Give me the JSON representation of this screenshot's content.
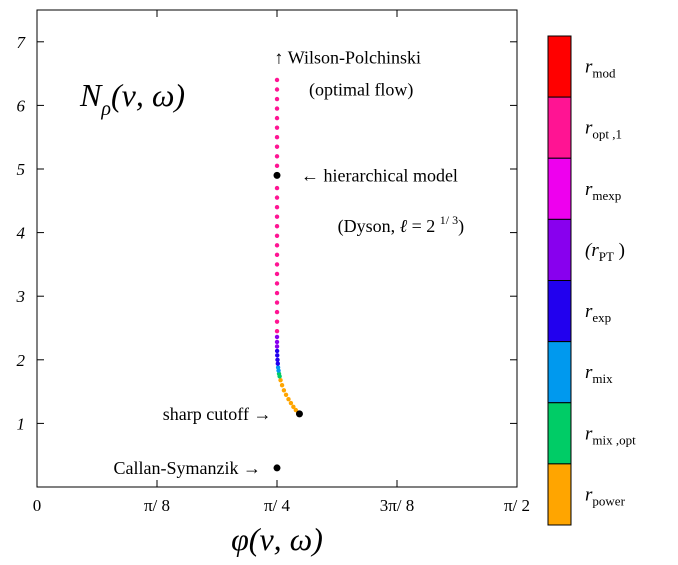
{
  "chart_data": {
    "type": "scatter",
    "title": "",
    "xlabel": "φ(ν, ω)",
    "ylabel": "N_ρ(ν, ω)",
    "xlim": [
      0,
      1.5708
    ],
    "ylim": [
      0,
      7.5
    ],
    "xticks": [
      {
        "value": 0,
        "label": "0"
      },
      {
        "value": 0.3927,
        "label": "π/ 8"
      },
      {
        "value": 0.7854,
        "label": "π/ 4"
      },
      {
        "value": 1.1781,
        "label": "3π/ 8"
      },
      {
        "value": 1.5708,
        "label": "π/ 2"
      }
    ],
    "yticks": [
      {
        "value": 1,
        "label": "1"
      },
      {
        "value": 2,
        "label": "2"
      },
      {
        "value": 3,
        "label": "3"
      },
      {
        "value": 4,
        "label": "4"
      },
      {
        "value": 5,
        "label": "5"
      },
      {
        "value": 6,
        "label": "6"
      },
      {
        "value": 7,
        "label": "7"
      }
    ],
    "axis_label_y": {
      "main": "N",
      "sub": "ρ",
      "rest": "(ν, ω)"
    },
    "axis_label_x": "φ(ν, ω)",
    "series": [
      {
        "color": "#ffa500",
        "points": [
          [
            0.8549,
            1.17
          ],
          [
            0.847,
            1.21
          ],
          [
            0.839,
            1.26
          ],
          [
            0.831,
            1.32
          ],
          [
            0.823,
            1.38
          ],
          [
            0.815,
            1.45
          ],
          [
            0.808,
            1.52
          ],
          [
            0.802,
            1.6
          ],
          [
            0.797,
            1.68
          ]
        ]
      },
      {
        "color": "#00cc66",
        "points": [
          [
            0.794,
            1.74
          ],
          [
            0.792,
            1.78
          ]
        ]
      },
      {
        "color": "#0099ee",
        "points": [
          [
            0.7905,
            1.83
          ],
          [
            0.789,
            1.88
          ]
        ]
      },
      {
        "color": "#2200ee",
        "points": [
          [
            0.788,
            1.94
          ],
          [
            0.787,
            2.0
          ],
          [
            0.7862,
            2.07
          ],
          [
            0.7858,
            2.14
          ]
        ]
      },
      {
        "color": "#8800ee",
        "points": [
          [
            0.7856,
            2.21
          ],
          [
            0.7855,
            2.28
          ],
          [
            0.7855,
            2.36
          ]
        ]
      },
      {
        "color": "#ff1493",
        "points": [
          [
            0.7855,
            2.45
          ],
          [
            0.7855,
            2.6
          ],
          [
            0.7855,
            2.75
          ],
          [
            0.7855,
            2.9
          ],
          [
            0.7855,
            3.05
          ],
          [
            0.7855,
            3.2
          ],
          [
            0.7855,
            3.35
          ],
          [
            0.7855,
            3.5
          ],
          [
            0.7855,
            3.65
          ],
          [
            0.7855,
            3.8
          ],
          [
            0.7855,
            3.95
          ],
          [
            0.7855,
            4.1
          ],
          [
            0.7855,
            4.25
          ],
          [
            0.7855,
            4.4
          ],
          [
            0.7855,
            4.55
          ],
          [
            0.7855,
            4.7
          ],
          [
            0.7855,
            5.05
          ],
          [
            0.7855,
            5.2
          ],
          [
            0.7855,
            5.35
          ],
          [
            0.7855,
            5.5
          ],
          [
            0.7855,
            5.65
          ],
          [
            0.7855,
            5.8
          ],
          [
            0.7855,
            5.95
          ],
          [
            0.7855,
            6.1
          ],
          [
            0.7855,
            6.25
          ],
          [
            0.7855,
            6.4
          ]
        ]
      }
    ],
    "special_points": [
      {
        "x": 0.7854,
        "y": 4.9,
        "label": "← hierarchical model"
      },
      {
        "x": 0.8589,
        "y": 1.15,
        "label": "sharp cutoff →"
      },
      {
        "x": 0.7854,
        "y": 0.3,
        "label": "Callan-Symanzik →"
      }
    ],
    "annotations": [
      {
        "text": "↑ Wilson-Polchinski",
        "x": 0.81,
        "y": 6.75
      },
      {
        "text": "(optimal flow)",
        "x": 0.89,
        "y": 6.25
      },
      {
        "text": "(Dyson,  ℓ = 2 1/3)",
        "x": 1.01,
        "y": 4.1
      }
    ],
    "legend": [
      {
        "main": "r",
        "sub": "mod",
        "color": "#ff0000"
      },
      {
        "main": "r",
        "sub": "opt ,1",
        "color": "#ff1493"
      },
      {
        "main": "r",
        "sub": "mexp",
        "color": "#ee00ee"
      },
      {
        "main": "(r",
        "sub": "PT",
        "tail": " )",
        "color": "#8800ee"
      },
      {
        "main": "r",
        "sub": "exp",
        "color": "#2200ee"
      },
      {
        "main": "r",
        "sub": "mix",
        "color": "#0099ee"
      },
      {
        "main": "r",
        "sub": "mix ,opt",
        "color": "#00cc66"
      },
      {
        "main": "r",
        "sub": "power",
        "color": "#ffa500"
      }
    ],
    "grid": false,
    "legend_placement": "right"
  }
}
